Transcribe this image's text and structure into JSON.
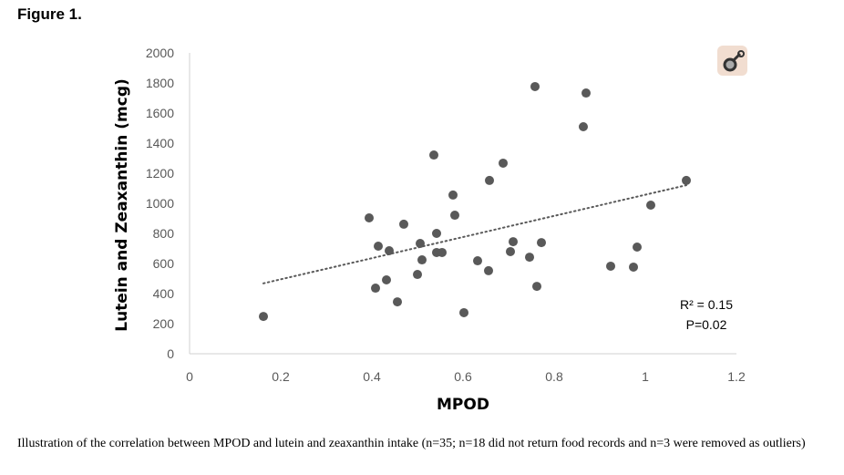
{
  "figure_title": "Figure 1.",
  "caption": "Illustration of the correlation between MPOD and lutein and zeaxanthin intake (n=35; n=18 did not return food records and n=3 were removed as outliers)",
  "icon": "magnifier-icon",
  "chart_data": {
    "type": "scatter",
    "title": "",
    "xlabel": "MPOD",
    "ylabel": "Lutein and Zeaxanthin (mcg)",
    "xlim": [
      0,
      1.2
    ],
    "ylim": [
      0,
      2000
    ],
    "xticks": [
      "0",
      "0.2",
      "0.4",
      "0.6",
      "0.8",
      "1",
      "1.2"
    ],
    "yticks": [
      "0",
      "200",
      "400",
      "600",
      "800",
      "1000",
      "1200",
      "1400",
      "1600",
      "1800",
      "2000"
    ],
    "grid": false,
    "marker_color": "#595959",
    "points": [
      [
        0.162,
        248
      ],
      [
        0.394,
        903
      ],
      [
        0.414,
        715
      ],
      [
        0.438,
        685
      ],
      [
        0.408,
        436
      ],
      [
        0.432,
        491
      ],
      [
        0.456,
        345
      ],
      [
        0.47,
        861
      ],
      [
        0.506,
        733
      ],
      [
        0.51,
        624
      ],
      [
        0.5,
        527
      ],
      [
        0.536,
        1321
      ],
      [
        0.542,
        800
      ],
      [
        0.542,
        673
      ],
      [
        0.554,
        673
      ],
      [
        0.578,
        1055
      ],
      [
        0.582,
        921
      ],
      [
        0.602,
        273
      ],
      [
        0.632,
        618
      ],
      [
        0.656,
        552
      ],
      [
        0.658,
        1152
      ],
      [
        0.688,
        1267
      ],
      [
        0.704,
        679
      ],
      [
        0.71,
        745
      ],
      [
        0.746,
        642
      ],
      [
        0.758,
        1776
      ],
      [
        0.762,
        448
      ],
      [
        0.772,
        739
      ],
      [
        0.864,
        1509
      ],
      [
        0.87,
        1733
      ],
      [
        0.924,
        582
      ],
      [
        0.974,
        576
      ],
      [
        0.982,
        709
      ],
      [
        1.012,
        988
      ],
      [
        1.09,
        1152
      ]
    ],
    "trendline": {
      "type": "linear",
      "style": "dotted",
      "x_range": [
        0.162,
        1.09
      ],
      "intercept": 354,
      "slope": 703
    },
    "annotations": {
      "r2": "R² = 0.15",
      "p": "P=0.02"
    }
  }
}
